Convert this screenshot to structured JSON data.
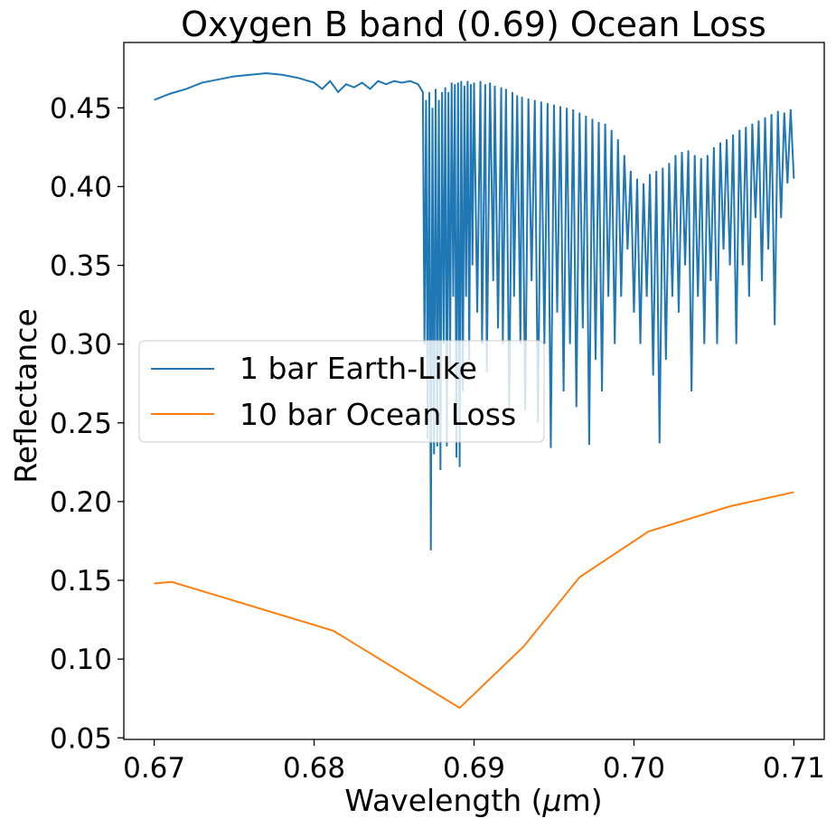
{
  "chart_data": {
    "type": "line",
    "title": "Oxygen B band (0.69) Ocean Loss",
    "xlabel_prefix": "Wavelength (",
    "xlabel_mu": "μ",
    "xlabel_suffix": "m)",
    "ylabel": "Reflectance",
    "xlim": [
      0.6681,
      0.7119
    ],
    "ylim": [
      0.049,
      0.4915
    ],
    "grid": false,
    "legend_position": "center-left",
    "x_ticks": [
      {
        "value": 0.67,
        "label": "0.67"
      },
      {
        "value": 0.68,
        "label": "0.68"
      },
      {
        "value": 0.69,
        "label": "0.69"
      },
      {
        "value": 0.7,
        "label": "0.70"
      },
      {
        "value": 0.71,
        "label": "0.71"
      }
    ],
    "y_ticks": [
      {
        "value": 0.05,
        "label": "0.05"
      },
      {
        "value": 0.1,
        "label": "0.10"
      },
      {
        "value": 0.15,
        "label": "0.15"
      },
      {
        "value": 0.2,
        "label": "0.20"
      },
      {
        "value": 0.25,
        "label": "0.25"
      },
      {
        "value": 0.3,
        "label": "0.30"
      },
      {
        "value": 0.35,
        "label": "0.35"
      },
      {
        "value": 0.4,
        "label": "0.40"
      },
      {
        "value": 0.45,
        "label": "0.45"
      }
    ],
    "series": [
      {
        "name": "1 bar Earth-Like",
        "color": "#1f77b4",
        "x": [
          0.67,
          0.671,
          0.672,
          0.673,
          0.674,
          0.675,
          0.676,
          0.677,
          0.678,
          0.679,
          0.68,
          0.6805,
          0.681,
          0.6815,
          0.682,
          0.6825,
          0.683,
          0.6835,
          0.684,
          0.6845,
          0.685,
          0.6855,
          0.686,
          0.6865,
          0.6868,
          0.6869,
          0.687,
          0.6871,
          0.6872,
          0.6873,
          0.6874,
          0.6875,
          0.6876,
          0.6877,
          0.6878,
          0.6879,
          0.688,
          0.6881,
          0.6882,
          0.6883,
          0.6884,
          0.6885,
          0.6886,
          0.6887,
          0.6888,
          0.6889,
          0.689,
          0.6891,
          0.6892,
          0.6893,
          0.6894,
          0.6895,
          0.6896,
          0.6897,
          0.6898,
          0.6899,
          0.69,
          0.6902,
          0.6904,
          0.6905,
          0.6907,
          0.6908,
          0.691,
          0.6912,
          0.6913,
          0.6915,
          0.6917,
          0.6918,
          0.692,
          0.6922,
          0.6924,
          0.6925,
          0.6927,
          0.6929,
          0.693,
          0.6932,
          0.6934,
          0.6936,
          0.6938,
          0.694,
          0.6942,
          0.6944,
          0.6946,
          0.6948,
          0.695,
          0.6952,
          0.6954,
          0.6956,
          0.6958,
          0.696,
          0.6962,
          0.6964,
          0.6966,
          0.6968,
          0.697,
          0.6972,
          0.6974,
          0.6976,
          0.6978,
          0.698,
          0.6982,
          0.6984,
          0.6986,
          0.6988,
          0.699,
          0.6992,
          0.6994,
          0.6996,
          0.6998,
          0.7,
          0.7002,
          0.7004,
          0.7006,
          0.7008,
          0.701,
          0.7012,
          0.7014,
          0.7016,
          0.7018,
          0.702,
          0.7022,
          0.7024,
          0.7026,
          0.7028,
          0.703,
          0.7032,
          0.7034,
          0.7036,
          0.7038,
          0.704,
          0.7042,
          0.7044,
          0.7046,
          0.7048,
          0.705,
          0.7052,
          0.7054,
          0.7056,
          0.7058,
          0.706,
          0.7062,
          0.7064,
          0.7066,
          0.7068,
          0.707,
          0.7072,
          0.7074,
          0.7076,
          0.7078,
          0.708,
          0.7082,
          0.7084,
          0.7086,
          0.7088,
          0.709,
          0.7092,
          0.7094,
          0.7096,
          0.7098,
          0.71
        ],
        "values": [
          0.455,
          0.459,
          0.462,
          0.466,
          0.468,
          0.47,
          0.471,
          0.472,
          0.471,
          0.469,
          0.466,
          0.462,
          0.467,
          0.46,
          0.465,
          0.463,
          0.466,
          0.462,
          0.467,
          0.465,
          0.467,
          0.466,
          0.467,
          0.465,
          0.46,
          0.3,
          0.455,
          0.24,
          0.46,
          0.169,
          0.45,
          0.23,
          0.462,
          0.235,
          0.455,
          0.22,
          0.46,
          0.3,
          0.463,
          0.235,
          0.46,
          0.28,
          0.466,
          0.33,
          0.465,
          0.228,
          0.466,
          0.222,
          0.467,
          0.27,
          0.464,
          0.33,
          0.467,
          0.29,
          0.465,
          0.35,
          0.466,
          0.32,
          0.467,
          0.3,
          0.465,
          0.282,
          0.466,
          0.34,
          0.464,
          0.31,
          0.463,
          0.3,
          0.462,
          0.26,
          0.46,
          0.33,
          0.458,
          0.3,
          0.457,
          0.258,
          0.456,
          0.34,
          0.455,
          0.25,
          0.454,
          0.3,
          0.453,
          0.234,
          0.452,
          0.32,
          0.451,
          0.27,
          0.45,
          0.3,
          0.449,
          0.26,
          0.447,
          0.31,
          0.445,
          0.236,
          0.443,
          0.29,
          0.441,
          0.27,
          0.44,
          0.33,
          0.436,
          0.3,
          0.43,
          0.33,
          0.42,
          0.36,
          0.41,
          0.32,
          0.405,
          0.3,
          0.402,
          0.33,
          0.408,
          0.28,
          0.41,
          0.237,
          0.412,
          0.29,
          0.415,
          0.33,
          0.42,
          0.32,
          0.422,
          0.35,
          0.423,
          0.27,
          0.42,
          0.33,
          0.418,
          0.3,
          0.42,
          0.34,
          0.425,
          0.3,
          0.428,
          0.36,
          0.43,
          0.35,
          0.433,
          0.3,
          0.436,
          0.35,
          0.438,
          0.33,
          0.44,
          0.38,
          0.442,
          0.34,
          0.444,
          0.36,
          0.446,
          0.312,
          0.448,
          0.38,
          0.447,
          0.402,
          0.449,
          0.405
        ]
      },
      {
        "name": "10 bar Ocean Loss",
        "color": "#ff7f0e",
        "x": [
          0.67,
          0.6711,
          0.6812,
          0.6891,
          0.6931,
          0.6966,
          0.7009,
          0.706,
          0.71
        ],
        "values": [
          0.148,
          0.149,
          0.118,
          0.069,
          0.108,
          0.152,
          0.181,
          0.197,
          0.206
        ]
      }
    ]
  }
}
